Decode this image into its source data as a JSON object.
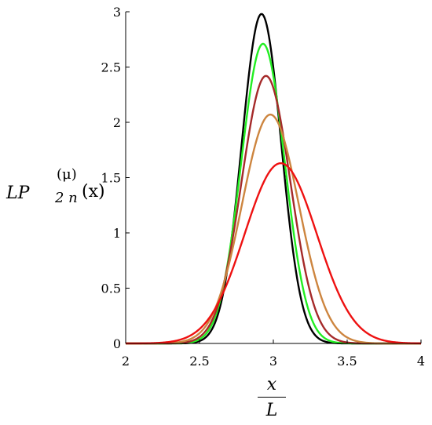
{
  "chart_data": {
    "type": "line",
    "title": "",
    "xlabel": {
      "numerator": "x",
      "denominator": "L"
    },
    "ylabel": {
      "base": "LP",
      "superscript": "(μ)",
      "subscript": "2 n",
      "argument": "(x)"
    },
    "xlim": [
      2,
      4
    ],
    "ylim": [
      0,
      3
    ],
    "xticks": [
      "2",
      "2.5",
      "3",
      "3.5",
      "4"
    ],
    "yticks": [
      "0",
      "0.5",
      "1",
      "1.5",
      "2",
      "2.5",
      "3"
    ],
    "grid": false,
    "legend": "none",
    "series": [
      {
        "color": "#000000",
        "peak_x": 2.92,
        "peak_y": 2.98
      },
      {
        "color": "#22ee22",
        "peak_x": 2.93,
        "peak_y": 2.71
      },
      {
        "color": "#a52a2a",
        "peak_x": 2.95,
        "peak_y": 2.42
      },
      {
        "color": "#cd853f",
        "peak_x": 2.98,
        "peak_y": 2.07
      },
      {
        "color": "#ee1111",
        "peak_x": 3.05,
        "peak_y": 1.63
      }
    ]
  }
}
